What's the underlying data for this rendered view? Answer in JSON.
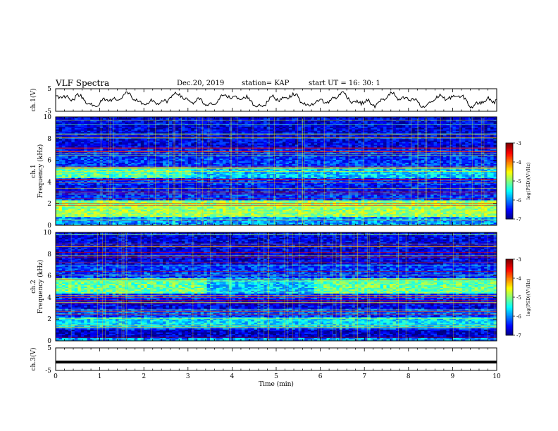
{
  "header": {
    "title": "VLF Spectra",
    "date": "Dec.20, 2019",
    "station": "station= KAP",
    "start": "start  UT =   16: 30: 1"
  },
  "chart_data": [
    {
      "type": "line",
      "ylabel": "ch.1(V)",
      "xlim": [
        0,
        10
      ],
      "ylim": [
        -5,
        5
      ],
      "yticks": [
        "5",
        "-5"
      ],
      "series": [
        {
          "values": []
        }
      ]
    },
    {
      "type": "heatmap",
      "ylabel": "Frequency (kHz)",
      "channel_label": "ch.1",
      "xlim": [
        0,
        10
      ],
      "ylim": [
        0,
        10
      ],
      "yticks": [
        "0",
        "2",
        "4",
        "6",
        "8",
        "10"
      ],
      "colorbar": {
        "label": "log(PSD)(V²/Hz)",
        "range": [
          -7,
          -3
        ],
        "ticks": [
          "-3",
          "-4",
          "-5",
          "-6",
          "-7"
        ]
      },
      "features": [
        {
          "band_khz": [
            0.8,
            2.3
          ],
          "level": -4.9
        },
        {
          "band_khz": [
            4.3,
            5.4
          ],
          "level": -5.2
        },
        {
          "band_khz": [
            3.0,
            3.7
          ],
          "level": -6.5
        },
        {
          "band_khz": [
            6.3,
            7.0
          ],
          "level": -6.4
        }
      ]
    },
    {
      "type": "heatmap",
      "ylabel": "Frequency (kHz)",
      "channel_label": "ch.2",
      "xlim": [
        0,
        10
      ],
      "ylim": [
        0,
        10
      ],
      "yticks": [
        "0",
        "2",
        "4",
        "6",
        "8",
        "10"
      ],
      "colorbar": {
        "label": "log(PSD)(V²/Hz)",
        "range": [
          -7,
          -3
        ],
        "ticks": [
          "-3",
          "-4",
          "-5",
          "-6",
          "-7"
        ]
      },
      "features": [
        {
          "band_khz": [
            4.3,
            5.8
          ],
          "level": -5.1
        },
        {
          "band_khz": [
            1.2,
            2.2
          ],
          "level": -5.6
        },
        {
          "band_khz": [
            3.0,
            3.8
          ],
          "level": -6.6
        },
        {
          "band_khz": [
            0.2,
            1.0
          ],
          "level": -6.7
        }
      ]
    },
    {
      "type": "line",
      "ylabel": "ch.3(V)",
      "xlabel": "Time (min)",
      "xlim": [
        0,
        10
      ],
      "ylim": [
        -5,
        5
      ],
      "yticks": [
        "5",
        "-5"
      ],
      "xticks": [
        "0",
        "1",
        "2",
        "3",
        "4",
        "5",
        "6",
        "7",
        "8",
        "9",
        "10"
      ],
      "series": [
        {
          "values": [
            -1.3,
            -1.3
          ]
        }
      ]
    }
  ]
}
